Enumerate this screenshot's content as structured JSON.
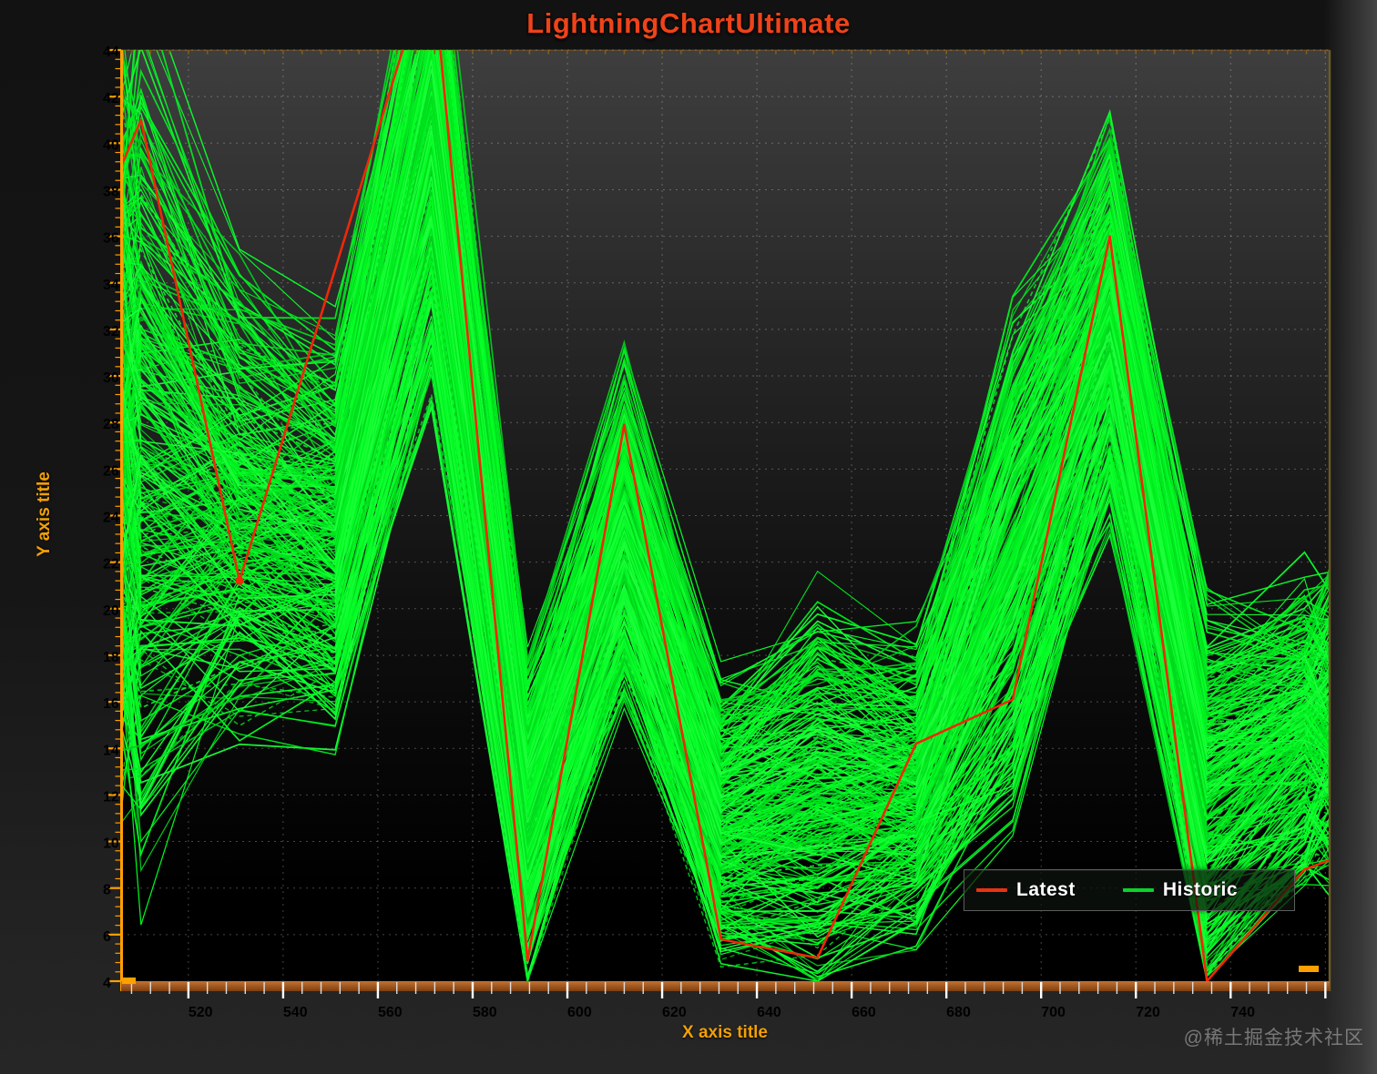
{
  "title": "LightningChartUltimate",
  "watermark": "@稀土掘金技术社区",
  "axes": {
    "x": {
      "title": "X axis title",
      "min": 505.8,
      "max": 760.9,
      "major_step": 20,
      "minor_step": 4,
      "tick_labels": [
        "520",
        "540",
        "560",
        "580",
        "600",
        "620",
        "640",
        "660",
        "680",
        "700",
        "720",
        "740"
      ]
    },
    "y": {
      "title": "Y axis title",
      "min": 4,
      "max": 44,
      "major_step": 2,
      "minor_step": 0.4,
      "tick_labels": [
        "44",
        "42",
        "40",
        "38",
        "36",
        "34",
        "32",
        "30",
        "28",
        "26",
        "24",
        "22",
        "20",
        "18",
        "16",
        "14",
        "12",
        "10",
        "8",
        "6",
        "4"
      ]
    }
  },
  "legend": {
    "items": [
      {
        "label": "Latest",
        "color": "#e83212"
      },
      {
        "label": "Historic",
        "color": "#0ad32a"
      }
    ]
  },
  "colors": {
    "title": "#ef431a",
    "axis_line": "#ffa000",
    "axis_bar_top": "#c27433",
    "axis_bar_mid": "#a55a22",
    "axis_bar_bottom": "#7c3f10",
    "tick_label": "#ededed",
    "grid": "rgba(255,255,255,0.27)",
    "latest_line": "#ef2808",
    "historic_line": "#00e221",
    "plot_bg_top": "#3e3e3e",
    "plot_bg_bottom": "#000000"
  },
  "chart_data": {
    "type": "line",
    "title": "LightningChartUltimate",
    "xlabel": "X axis title",
    "ylabel": "Y axis title",
    "xlim": [
      505.8,
      760.9
    ],
    "ylim": [
      4,
      44
    ],
    "grid": "dotted",
    "legend_position": "bottom-right",
    "series": [
      {
        "name": "Latest",
        "color": "#ef2808",
        "x": [
          505.8,
          510,
          530.8,
          551,
          571.3,
          591.6,
          612,
          632.4,
          652.8,
          673.6,
          694,
          714.5,
          735,
          755.6,
          760.9
        ],
        "y": [
          39.0,
          41.0,
          21.2,
          34.6,
          48.0,
          4.9,
          27.9,
          5.8,
          5.0,
          14.2,
          16.1,
          36.0,
          4.0,
          8.8,
          9.2
        ],
        "note": "peak at x=571 exceeds the visible y range (clipped at 44); vertex marker visible at (530.8, 21.2)"
      },
      {
        "name": "Historic",
        "color": "#00e221",
        "ensemble": true,
        "count": 300,
        "x": [
          505.8,
          510,
          530.8,
          551,
          571.3,
          591.6,
          612,
          632.4,
          652.8,
          673.6,
          694,
          714.5,
          735,
          755.6,
          760.9
        ],
        "mean": [
          28.5,
          27.5,
          25.0,
          23.5,
          41.0,
          11.0,
          23.5,
          11.0,
          12.2,
          12.5,
          22.0,
          32.6,
          12.5,
          15.0,
          15.2
        ],
        "spread": [
          15.5,
          18.0,
          9.7,
          8.6,
          12.0,
          7.0,
          7.5,
          6.0,
          8.3,
          6.4,
          11.0,
          8.7,
          8.5,
          6.6,
          6.6
        ],
        "envelope_low": [
          13,
          9,
          15.5,
          15,
          29,
          4,
          16,
          5,
          4,
          6,
          11,
          24,
          4,
          8.5,
          8.6
        ],
        "envelope_high": [
          44,
          45.5,
          34.5,
          32,
          53,
          18,
          31,
          17,
          20.5,
          19,
          33,
          41.3,
          21,
          21.5,
          21.8
        ],
        "note": "hundreds of overlapping historic traces forming a solid green band between envelope_low and envelope_high; tops clipped above y=44 near x=571"
      }
    ]
  }
}
